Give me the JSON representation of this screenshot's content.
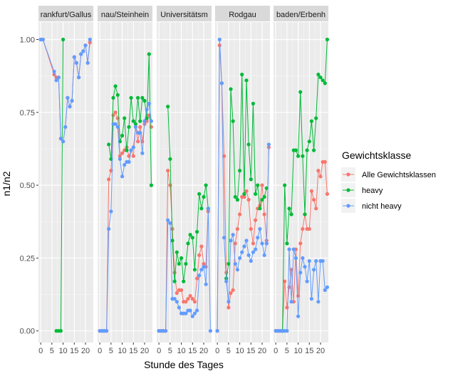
{
  "chart_data": {
    "type": "line",
    "xlabel": "Stunde des Tages",
    "ylabel": "n1/n2",
    "xlim": [
      -1,
      23.5
    ],
    "ylim": [
      -0.04,
      1.06
    ],
    "x_ticks": [
      0,
      5,
      10,
      15,
      20
    ],
    "x_tick_labels": [
      "0",
      "5",
      "10",
      "15",
      "20"
    ],
    "y_ticks": [
      0.0,
      0.25,
      0.5,
      0.75,
      1.0
    ],
    "y_tick_labels": [
      "0.00",
      "0.25",
      "0.50",
      "0.75",
      "1.00"
    ],
    "grid": true,
    "legend_position": "right",
    "legend": {
      "title": "Gewichtsklasse",
      "entries": [
        {
          "label": "Alle Gewichtsklassen",
          "color": "#F8766D"
        },
        {
          "label": "heavy",
          "color": "#00BA38"
        },
        {
          "label": "nicht heavy",
          "color": "#619CFF"
        }
      ]
    },
    "colors": {
      "panel_bg": "#EBEBEB",
      "strip_bg": "#D9D9D9",
      "grid": "#FFFFFF"
    },
    "panels": [
      {
        "title": "rankfurt/Gallus",
        "series": [
          {
            "name": "Alle Gewichtsklassen",
            "x": [
              0,
              1,
              6,
              7,
              8,
              9,
              10,
              11,
              12,
              13,
              14,
              15,
              16,
              17,
              18,
              19,
              20,
              21,
              22
            ],
            "y": [
              1.0,
              1.0,
              0.88,
              0.87,
              0.87,
              0.66,
              0.65,
              0.7,
              0.8,
              0.77,
              0.79,
              0.94,
              0.92,
              0.87,
              0.95,
              0.96,
              0.98,
              0.92,
              0.99
            ]
          },
          {
            "name": "heavy",
            "x": [
              7,
              8,
              9,
              10
            ],
            "y": [
              0.0,
              0.0,
              0.0,
              1.0
            ]
          },
          {
            "name": "nicht heavy",
            "x": [
              0,
              1,
              6,
              7,
              8,
              9,
              10,
              11,
              12,
              13,
              14,
              15,
              16,
              17,
              18,
              19,
              20,
              21,
              22
            ],
            "y": [
              1.0,
              1.0,
              0.89,
              0.86,
              0.87,
              0.66,
              0.65,
              0.7,
              0.8,
              0.77,
              0.79,
              0.94,
              0.92,
              0.87,
              0.95,
              0.96,
              0.98,
              0.92,
              1.0
            ]
          }
        ]
      },
      {
        "title": "nau/Steinhein",
        "series": [
          {
            "name": "Alle Gewichtsklassen",
            "x": [
              0,
              1,
              2,
              3,
              4,
              5,
              6,
              7,
              8,
              9,
              10,
              11,
              12,
              13,
              14,
              15,
              16,
              17,
              18,
              19,
              20,
              21,
              22,
              23
            ],
            "y": [
              0.0,
              0.0,
              0.0,
              0.0,
              0.52,
              0.55,
              0.74,
              0.75,
              0.73,
              0.6,
              0.61,
              0.62,
              0.63,
              0.6,
              0.62,
              0.6,
              0.7,
              0.65,
              0.7,
              0.65,
              0.71,
              0.72,
              0.74,
              0.7
            ]
          },
          {
            "name": "heavy",
            "x": [
              4,
              5,
              6,
              7,
              8,
              9,
              10,
              11,
              12,
              13,
              14,
              15,
              16,
              17,
              18,
              19,
              20,
              21,
              22,
              23
            ],
            "y": [
              0.64,
              0.59,
              0.8,
              0.84,
              0.81,
              0.65,
              0.67,
              0.73,
              0.62,
              0.7,
              0.8,
              0.72,
              0.71,
              0.8,
              0.72,
              0.8,
              0.79,
              0.73,
              0.95,
              0.5
            ]
          },
          {
            "name": "nicht heavy",
            "x": [
              0,
              1,
              2,
              3,
              4,
              5,
              6,
              7,
              8,
              9,
              10,
              11,
              12,
              13,
              14,
              15,
              16,
              17,
              18,
              19,
              20,
              21,
              22,
              23
            ],
            "y": [
              0.0,
              0.0,
              0.0,
              0.0,
              0.35,
              0.41,
              0.71,
              0.71,
              0.7,
              0.59,
              0.53,
              0.57,
              0.58,
              0.58,
              0.62,
              0.63,
              0.7,
              0.68,
              0.68,
              0.61,
              0.72,
              0.76,
              0.78,
              0.72
            ]
          }
        ]
      },
      {
        "title": "Universitätsm",
        "series": [
          {
            "name": "Alle Gewichtsklassen",
            "x": [
              0,
              1,
              2,
              3,
              4,
              5,
              6,
              7,
              8,
              9,
              10,
              11,
              12,
              13,
              14,
              15,
              16,
              17,
              18,
              19,
              20,
              21,
              22
            ],
            "y": [
              0.0,
              0.0,
              0.0,
              0.0,
              0.55,
              0.5,
              0.35,
              0.2,
              0.13,
              0.14,
              0.14,
              0.1,
              0.1,
              0.11,
              0.12,
              0.11,
              0.1,
              0.18,
              0.26,
              0.29,
              0.23,
              0.22,
              0.41
            ]
          },
          {
            "name": "heavy",
            "x": [
              4,
              5,
              6,
              7,
              8,
              9,
              10,
              11,
              12,
              13,
              14,
              15,
              16,
              17,
              18,
              19,
              20,
              21,
              22
            ],
            "y": [
              0.77,
              0.59,
              0.31,
              0.17,
              0.27,
              0.23,
              0.25,
              0.17,
              0.23,
              0.3,
              0.33,
              0.32,
              0.21,
              0.34,
              0.47,
              0.42,
              0.46,
              0.5,
              0.42
            ]
          },
          {
            "name": "nicht heavy",
            "x": [
              0,
              1,
              2,
              3,
              4,
              5,
              6,
              7,
              8,
              9,
              10,
              11,
              12,
              13,
              14,
              15,
              16,
              17,
              18,
              19,
              20,
              21,
              22,
              23
            ],
            "y": [
              0.0,
              0.0,
              0.0,
              0.0,
              0.38,
              0.37,
              0.11,
              0.11,
              0.1,
              0.08,
              0.06,
              0.06,
              0.06,
              0.07,
              0.07,
              0.05,
              0.06,
              0.07,
              0.19,
              0.21,
              0.22,
              0.16,
              0.42,
              0.0
            ]
          }
        ]
      },
      {
        "title": "Rodgau",
        "series": [
          {
            "name": "Alle Gewichtsklassen",
            "x": [
              0,
              1,
              2,
              3,
              4,
              5,
              6,
              7,
              8,
              9,
              10,
              11,
              12,
              13,
              14,
              15,
              16,
              17,
              18,
              19,
              20,
              21,
              22,
              23
            ],
            "y": [
              0.0,
              0.98,
              0.85,
              0.6,
              0.2,
              0.08,
              0.13,
              0.14,
              0.3,
              0.35,
              0.4,
              0.46,
              0.46,
              0.48,
              0.45,
              0.35,
              0.3,
              0.38,
              0.42,
              0.43,
              0.5,
              0.4,
              0.31,
              0.63
            ]
          },
          {
            "name": "heavy",
            "x": [
              4,
              5,
              6,
              7,
              8,
              9,
              10,
              11,
              12,
              13,
              14,
              15,
              16,
              17,
              18,
              19,
              20,
              21,
              22
            ],
            "y": [
              0.18,
              0.23,
              0.83,
              0.72,
              0.46,
              0.45,
              0.55,
              0.88,
              0.47,
              0.86,
              0.64,
              0.52,
              0.78,
              0.47,
              0.5,
              0.42,
              0.45,
              0.46,
              0.49
            ]
          },
          {
            "name": "nicht heavy",
            "x": [
              0,
              1,
              2,
              3,
              4,
              5,
              6,
              7,
              8,
              9,
              10,
              11,
              12,
              13,
              14,
              15,
              16,
              17,
              18,
              19,
              20,
              21,
              22,
              23
            ],
            "y": [
              0.0,
              1.0,
              0.85,
              0.32,
              0.17,
              0.1,
              0.31,
              0.33,
              0.23,
              0.21,
              0.25,
              0.27,
              0.29,
              0.31,
              0.26,
              0.24,
              0.27,
              0.28,
              0.32,
              0.35,
              0.3,
              0.26,
              0.3,
              0.64
            ]
          }
        ]
      },
      {
        "title": "baden/Erbenh",
        "series": [
          {
            "name": "Alle Gewichtsklassen",
            "x": [
              0,
              1,
              2,
              3,
              4,
              5,
              6,
              7,
              8,
              9,
              10,
              11,
              12,
              13,
              14,
              15,
              16,
              17,
              18,
              19,
              20,
              21,
              22,
              23
            ],
            "y": [
              0.0,
              0.0,
              0.0,
              0.0,
              0.17,
              0.08,
              0.15,
              0.21,
              0.1,
              0.28,
              0.12,
              0.3,
              0.35,
              0.4,
              0.35,
              0.35,
              0.48,
              0.45,
              0.42,
              0.55,
              0.53,
              0.58,
              0.58,
              0.47
            ]
          },
          {
            "name": "heavy",
            "x": [
              3,
              4,
              5,
              6,
              7,
              8,
              9,
              10,
              11,
              12,
              13,
              14,
              15,
              16,
              17,
              18,
              19,
              20,
              21,
              22,
              23
            ],
            "y": [
              0.0,
              0.5,
              0.3,
              0.42,
              0.4,
              0.62,
              0.62,
              0.6,
              0.82,
              0.6,
              0.4,
              0.62,
              0.65,
              0.72,
              0.62,
              0.73,
              0.88,
              0.87,
              0.86,
              0.85,
              1.0
            ]
          },
          {
            "name": "nicht heavy",
            "x": [
              0,
              1,
              2,
              3,
              4,
              5,
              6,
              7,
              8,
              9,
              10,
              11,
              12,
              13,
              14,
              15,
              16,
              17,
              18,
              19,
              20,
              21,
              22,
              23
            ],
            "y": [
              0.0,
              0.0,
              0.0,
              0.0,
              0.0,
              0.0,
              0.28,
              0.1,
              0.28,
              0.25,
              0.05,
              0.2,
              0.25,
              0.22,
              0.17,
              0.24,
              0.11,
              0.21,
              0.24,
              0.1,
              0.24,
              0.24,
              0.14,
              0.15
            ]
          }
        ]
      }
    ]
  }
}
